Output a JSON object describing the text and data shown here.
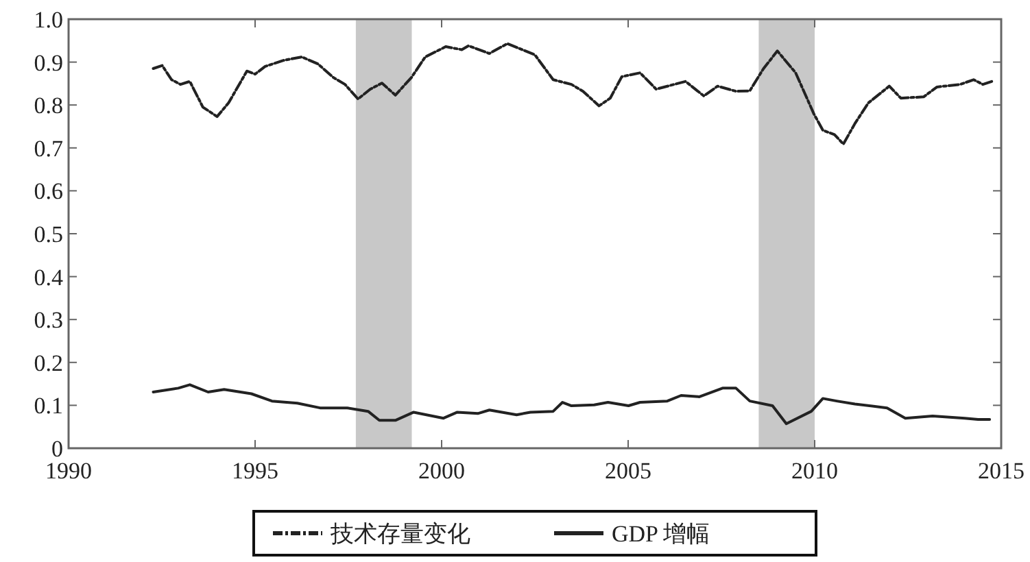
{
  "chart_data": {
    "type": "line",
    "xlim": [
      1990,
      2015
    ],
    "xticks": [
      1990,
      1995,
      2000,
      2005,
      2010,
      2015
    ],
    "ylim": [
      0,
      1
    ],
    "yticks": [
      {
        "value": 0,
        "label": "0"
      },
      0.1,
      0.2,
      0.3,
      0.4,
      0.5,
      0.6,
      0.7,
      0.8,
      0.9,
      {
        "value": 1,
        "label": "1.0"
      }
    ],
    "legend": "bottom",
    "grid": false,
    "bands": [
      {
        "axis": "x",
        "from": 1997.7,
        "to": 1999.2,
        "color": "#c8c8c8"
      },
      {
        "axis": "x",
        "from": 2008.5,
        "to": 2010.0,
        "color": "#c8c8c8"
      }
    ],
    "series": [
      {
        "name": "技术存量变化",
        "color": "#222222",
        "line_style": "dashed",
        "x": [
          1992.27,
          1992.51,
          1992.76,
          1993.0,
          1993.25,
          1993.6,
          1993.98,
          1994.29,
          1994.78,
          1995.0,
          1995.27,
          1995.76,
          1996.25,
          1996.68,
          1997.1,
          1997.41,
          1997.76,
          1998.09,
          1998.4,
          1998.76,
          1999.19,
          1999.56,
          2000.11,
          2000.54,
          2000.72,
          2001.28,
          2001.76,
          2002.5,
          2002.99,
          2003.48,
          2003.79,
          2004.22,
          2004.52,
          2004.83,
          2005.32,
          2005.75,
          2006.54,
          2007.03,
          2007.4,
          2007.89,
          2008.26,
          2008.63,
          2009.0,
          2009.49,
          2009.98,
          2010.22,
          2010.53,
          2010.77,
          2011.08,
          2011.44,
          2012.0,
          2012.31,
          2012.92,
          2013.28,
          2013.9,
          2014.26,
          2014.51,
          2014.75
        ],
        "values": [
          0.885,
          0.892,
          0.859,
          0.848,
          0.855,
          0.795,
          0.773,
          0.805,
          0.879,
          0.872,
          0.89,
          0.904,
          0.912,
          0.896,
          0.864,
          0.848,
          0.814,
          0.837,
          0.851,
          0.823,
          0.864,
          0.912,
          0.936,
          0.929,
          0.938,
          0.92,
          0.943,
          0.917,
          0.859,
          0.848,
          0.832,
          0.798,
          0.816,
          0.866,
          0.875,
          0.837,
          0.855,
          0.821,
          0.844,
          0.832,
          0.833,
          0.885,
          0.926,
          0.875,
          0.779,
          0.741,
          0.731,
          0.709,
          0.757,
          0.805,
          0.844,
          0.816,
          0.819,
          0.842,
          0.848,
          0.859,
          0.848,
          0.855
        ]
      },
      {
        "name": "GDP 增幅",
        "color": "#222222",
        "line_style": "solid",
        "x": [
          1992.27,
          1992.94,
          1993.25,
          1993.74,
          1994.17,
          1994.9,
          1995.45,
          1996.13,
          1996.74,
          1997.47,
          1998.03,
          1998.33,
          1998.76,
          1999.25,
          2000.05,
          2000.42,
          2000.97,
          2001.28,
          2002.01,
          2002.38,
          2002.99,
          2003.24,
          2003.48,
          2004.09,
          2004.46,
          2005.01,
          2005.32,
          2006.05,
          2006.42,
          2006.91,
          2007.53,
          2007.89,
          2008.26,
          2008.87,
          2009.24,
          2009.91,
          2010.22,
          2010.59,
          2011.08,
          2011.94,
          2012.43,
          2013.16,
          2014.02,
          2014.38,
          2014.69
        ],
        "values": [
          0.131,
          0.14,
          0.148,
          0.131,
          0.137,
          0.127,
          0.11,
          0.105,
          0.094,
          0.094,
          0.086,
          0.065,
          0.065,
          0.084,
          0.07,
          0.084,
          0.081,
          0.089,
          0.078,
          0.084,
          0.086,
          0.107,
          0.099,
          0.101,
          0.107,
          0.099,
          0.107,
          0.11,
          0.123,
          0.12,
          0.14,
          0.14,
          0.11,
          0.099,
          0.057,
          0.086,
          0.116,
          0.11,
          0.103,
          0.094,
          0.07,
          0.075,
          0.07,
          0.067,
          0.067
        ]
      }
    ]
  }
}
